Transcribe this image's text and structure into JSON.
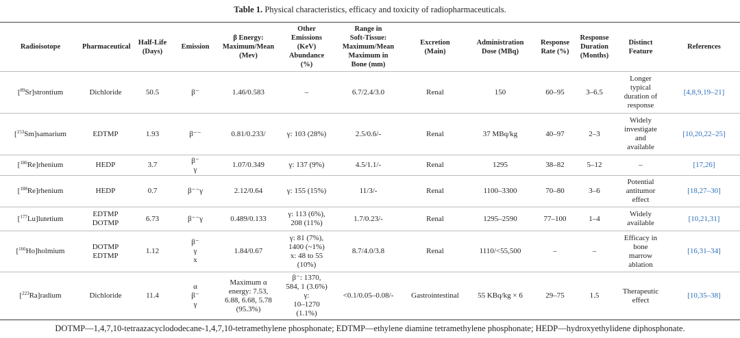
{
  "caption": {
    "label": "Table 1.",
    "text": " Physical characteristics, efficacy and toxicity of radiopharmaceuticals."
  },
  "colors": {
    "reference_link": "#2a6ebb",
    "text": "#222222"
  },
  "headers": [
    "Radioisotope",
    "Pharmaceutical",
    "Half-Life\n(Days)",
    "Emission",
    "β Energy:\nMaximum/Mean\n(Mev)",
    "Other\nEmissions\n(KeV)\nAbundance\n(%)",
    "Range in\nSoft-Tissue:\nMaximum/Mean\nMaximum in\nBone (mm)",
    "Excretion\n(Main)",
    "Administration\nDose (MBq)",
    "Response\nRate (%)",
    "Response\nDuration\n(Months)",
    "Distinct\nFeature",
    "References"
  ],
  "rows": [
    {
      "mass": "89",
      "isotope": "Sr]strontium",
      "pharmaceutical": "Dichloride",
      "half_life": "50.5",
      "emission": "β⁻",
      "beta_energy": "1.46/0.583",
      "other_emissions": "–",
      "range": "6.7/2.4/3.0",
      "excretion": "Renal",
      "dose": "150",
      "response_rate": "60–95",
      "response_duration": "3–6.5",
      "feature": "Longer\ntypical\nduration of\nresponse",
      "references": "[4,8,9,19–21]"
    },
    {
      "mass": "153",
      "isotope": "Sm]samarium",
      "pharmaceutical": "EDTMP",
      "half_life": "1.93",
      "emission": "β⁻⁻",
      "beta_energy": "0.81/0.233/",
      "other_emissions": "γ: 103 (28%)",
      "range": "2.5/0.6/-",
      "excretion": "Renal",
      "dose": "37 MBq/kg",
      "response_rate": "40–97",
      "response_duration": "2–3",
      "feature": "Widely\ninvestigate\nand\navailable",
      "references": "[10,20,22–25]"
    },
    {
      "mass": "186",
      "isotope": "Re]rhenium",
      "pharmaceutical": "HEDP",
      "half_life": "3.7",
      "emission": "β⁻\nγ",
      "beta_energy": "1.07/0.349",
      "other_emissions": "γ: 137 (9%)",
      "range": "4.5/1.1/-",
      "excretion": "Renal",
      "dose": "1295",
      "response_rate": "38–82",
      "response_duration": "5–12",
      "feature": "–",
      "references": "[17,26]"
    },
    {
      "mass": "188",
      "isotope": "Re]rhenium",
      "pharmaceutical": "HEDP",
      "half_life": "0.7",
      "emission": "β⁻⁻γ",
      "beta_energy": "2.12/0.64",
      "other_emissions": "γ: 155 (15%)",
      "range": "11/3/-",
      "excretion": "Renal",
      "dose": "1100–3300",
      "response_rate": "70–80",
      "response_duration": "3–6",
      "feature": "Potential\nantitumor\neffect",
      "references": "[18,27–30]"
    },
    {
      "mass": "177",
      "isotope": "Lu]lutetium",
      "pharmaceutical": "EDTMP\nDOTMP",
      "half_life": "6.73",
      "emission": "β⁻⁻γ",
      "beta_energy": "0.489/0.133",
      "other_emissions": "γ: 113 (6%),\n208 (11%)",
      "range": "1.7/0.23/-",
      "excretion": "Renal",
      "dose": "1295–2590",
      "response_rate": "77–100",
      "response_duration": "1–4",
      "feature": "Widely\navailable",
      "references": "[10,21,31]"
    },
    {
      "mass": "166",
      "isotope": "Ho]holmium",
      "pharmaceutical": "DOTMP\nEDTMP",
      "half_life": "1.12",
      "emission": "β⁻\nγ\nx",
      "beta_energy": "1.84/0.67",
      "other_emissions": "γ: 81 (7%),\n1400 (~1%)\nx: 48 to 55\n(10%)",
      "range": "8.7/4.0/3.8",
      "excretion": "Renal",
      "dose": "1110/<55,500",
      "response_rate": "–",
      "response_duration": "–",
      "feature": "Efficacy in\nbone\nmarrow\nablation",
      "references": "[16,31–34]"
    },
    {
      "mass": "223",
      "isotope": "Ra]radium",
      "pharmaceutical": "Dichloride",
      "half_life": "11.4",
      "emission": "α\nβ⁻\nγ",
      "beta_energy": "Maximum α\nenergy: 7.53,\n6.88, 6.68, 5.78\n(95.3%)",
      "other_emissions": "β⁻: 1370,\n584, 1 (3.6%)\nγ:\n10–1270\n(1.1%)",
      "range": "<0.1/0.05–0.08/-",
      "excretion": "Gastrointestinal",
      "dose": "55 KBq/kg × 6",
      "response_rate": "29–75",
      "response_duration": "1.5",
      "feature": "Therapeutic\neffect",
      "references": "[10,35–38]"
    }
  ],
  "footnote": "DOTMP—1,4,7,10-tetraazacyclododecane-1,4,7,10-tetramethylene phosphonate; EDTMP—ethylene diamine tetramethylene phosphonate; HEDP—hydroxyethylidene diphosphonate."
}
